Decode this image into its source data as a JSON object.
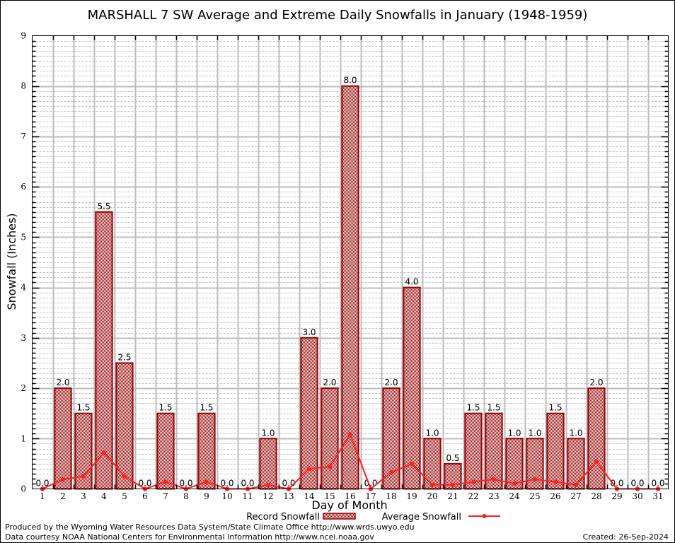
{
  "chart_data": {
    "type": "bar",
    "title": "MARSHALL 7 SW Average and Extreme Daily Snowfalls in January (1948-1959)",
    "xlabel": "Day of Month",
    "ylabel": "Snowfall (Inches)",
    "ylim": [
      0,
      9
    ],
    "y_ticks": [
      "0",
      "1",
      "2",
      "3",
      "4",
      "5",
      "6",
      "7",
      "8",
      "9"
    ],
    "categories": [
      "1",
      "2",
      "3",
      "4",
      "5",
      "6",
      "7",
      "8",
      "9",
      "10",
      "11",
      "12",
      "13",
      "14",
      "15",
      "16",
      "17",
      "18",
      "19",
      "20",
      "21",
      "22",
      "23",
      "24",
      "25",
      "26",
      "27",
      "28",
      "29",
      "30",
      "31"
    ],
    "grid": true,
    "legend_position": "bottom-center",
    "series": [
      {
        "name": "Record Snowfall",
        "type": "bar",
        "color": "#990000",
        "values": [
          0.0,
          2.0,
          1.5,
          5.5,
          2.5,
          0.0,
          1.5,
          0.0,
          1.5,
          0.0,
          0.0,
          1.0,
          0.0,
          3.0,
          2.0,
          8.0,
          0.0,
          2.0,
          4.0,
          1.0,
          0.5,
          1.5,
          1.5,
          1.0,
          1.0,
          1.5,
          1.0,
          2.0,
          0.0,
          0.0,
          0.0
        ],
        "labels": [
          "0.0",
          "2.0",
          "1.5",
          "5.5",
          "2.5",
          "0.0",
          "1.5",
          "0.0",
          "1.5",
          "0.0",
          "0.0",
          "1.0",
          "0.0",
          "3.0",
          "2.0",
          "8.0",
          "0.0",
          "2.0",
          "4.0",
          "1.0",
          "0.5",
          "1.5",
          "1.5",
          "1.0",
          "1.0",
          "1.5",
          "1.0",
          "2.0",
          "0.0",
          "0.0",
          "0.0"
        ]
      },
      {
        "name": "Average Snowfall",
        "type": "line",
        "color": "#ff2020",
        "values": [
          0.0,
          0.19,
          0.25,
          0.72,
          0.25,
          0.0,
          0.14,
          0.0,
          0.14,
          0.0,
          0.0,
          0.08,
          0.0,
          0.4,
          0.44,
          1.08,
          0.0,
          0.33,
          0.5,
          0.08,
          0.08,
          0.14,
          0.19,
          0.11,
          0.19,
          0.14,
          0.08,
          0.54,
          0.0,
          0.0,
          0.0
        ]
      }
    ]
  },
  "footer": {
    "produced_by": "Produced by the Wyoming Water Resources Data System/State Climate Office http://www.wrds.uwyo.edu",
    "data_courtesy": "Data courtesy NOAA National Centers for Environmental Information http://www.ncei.noaa.gov",
    "created": "Created: 26-Sep-2024"
  }
}
